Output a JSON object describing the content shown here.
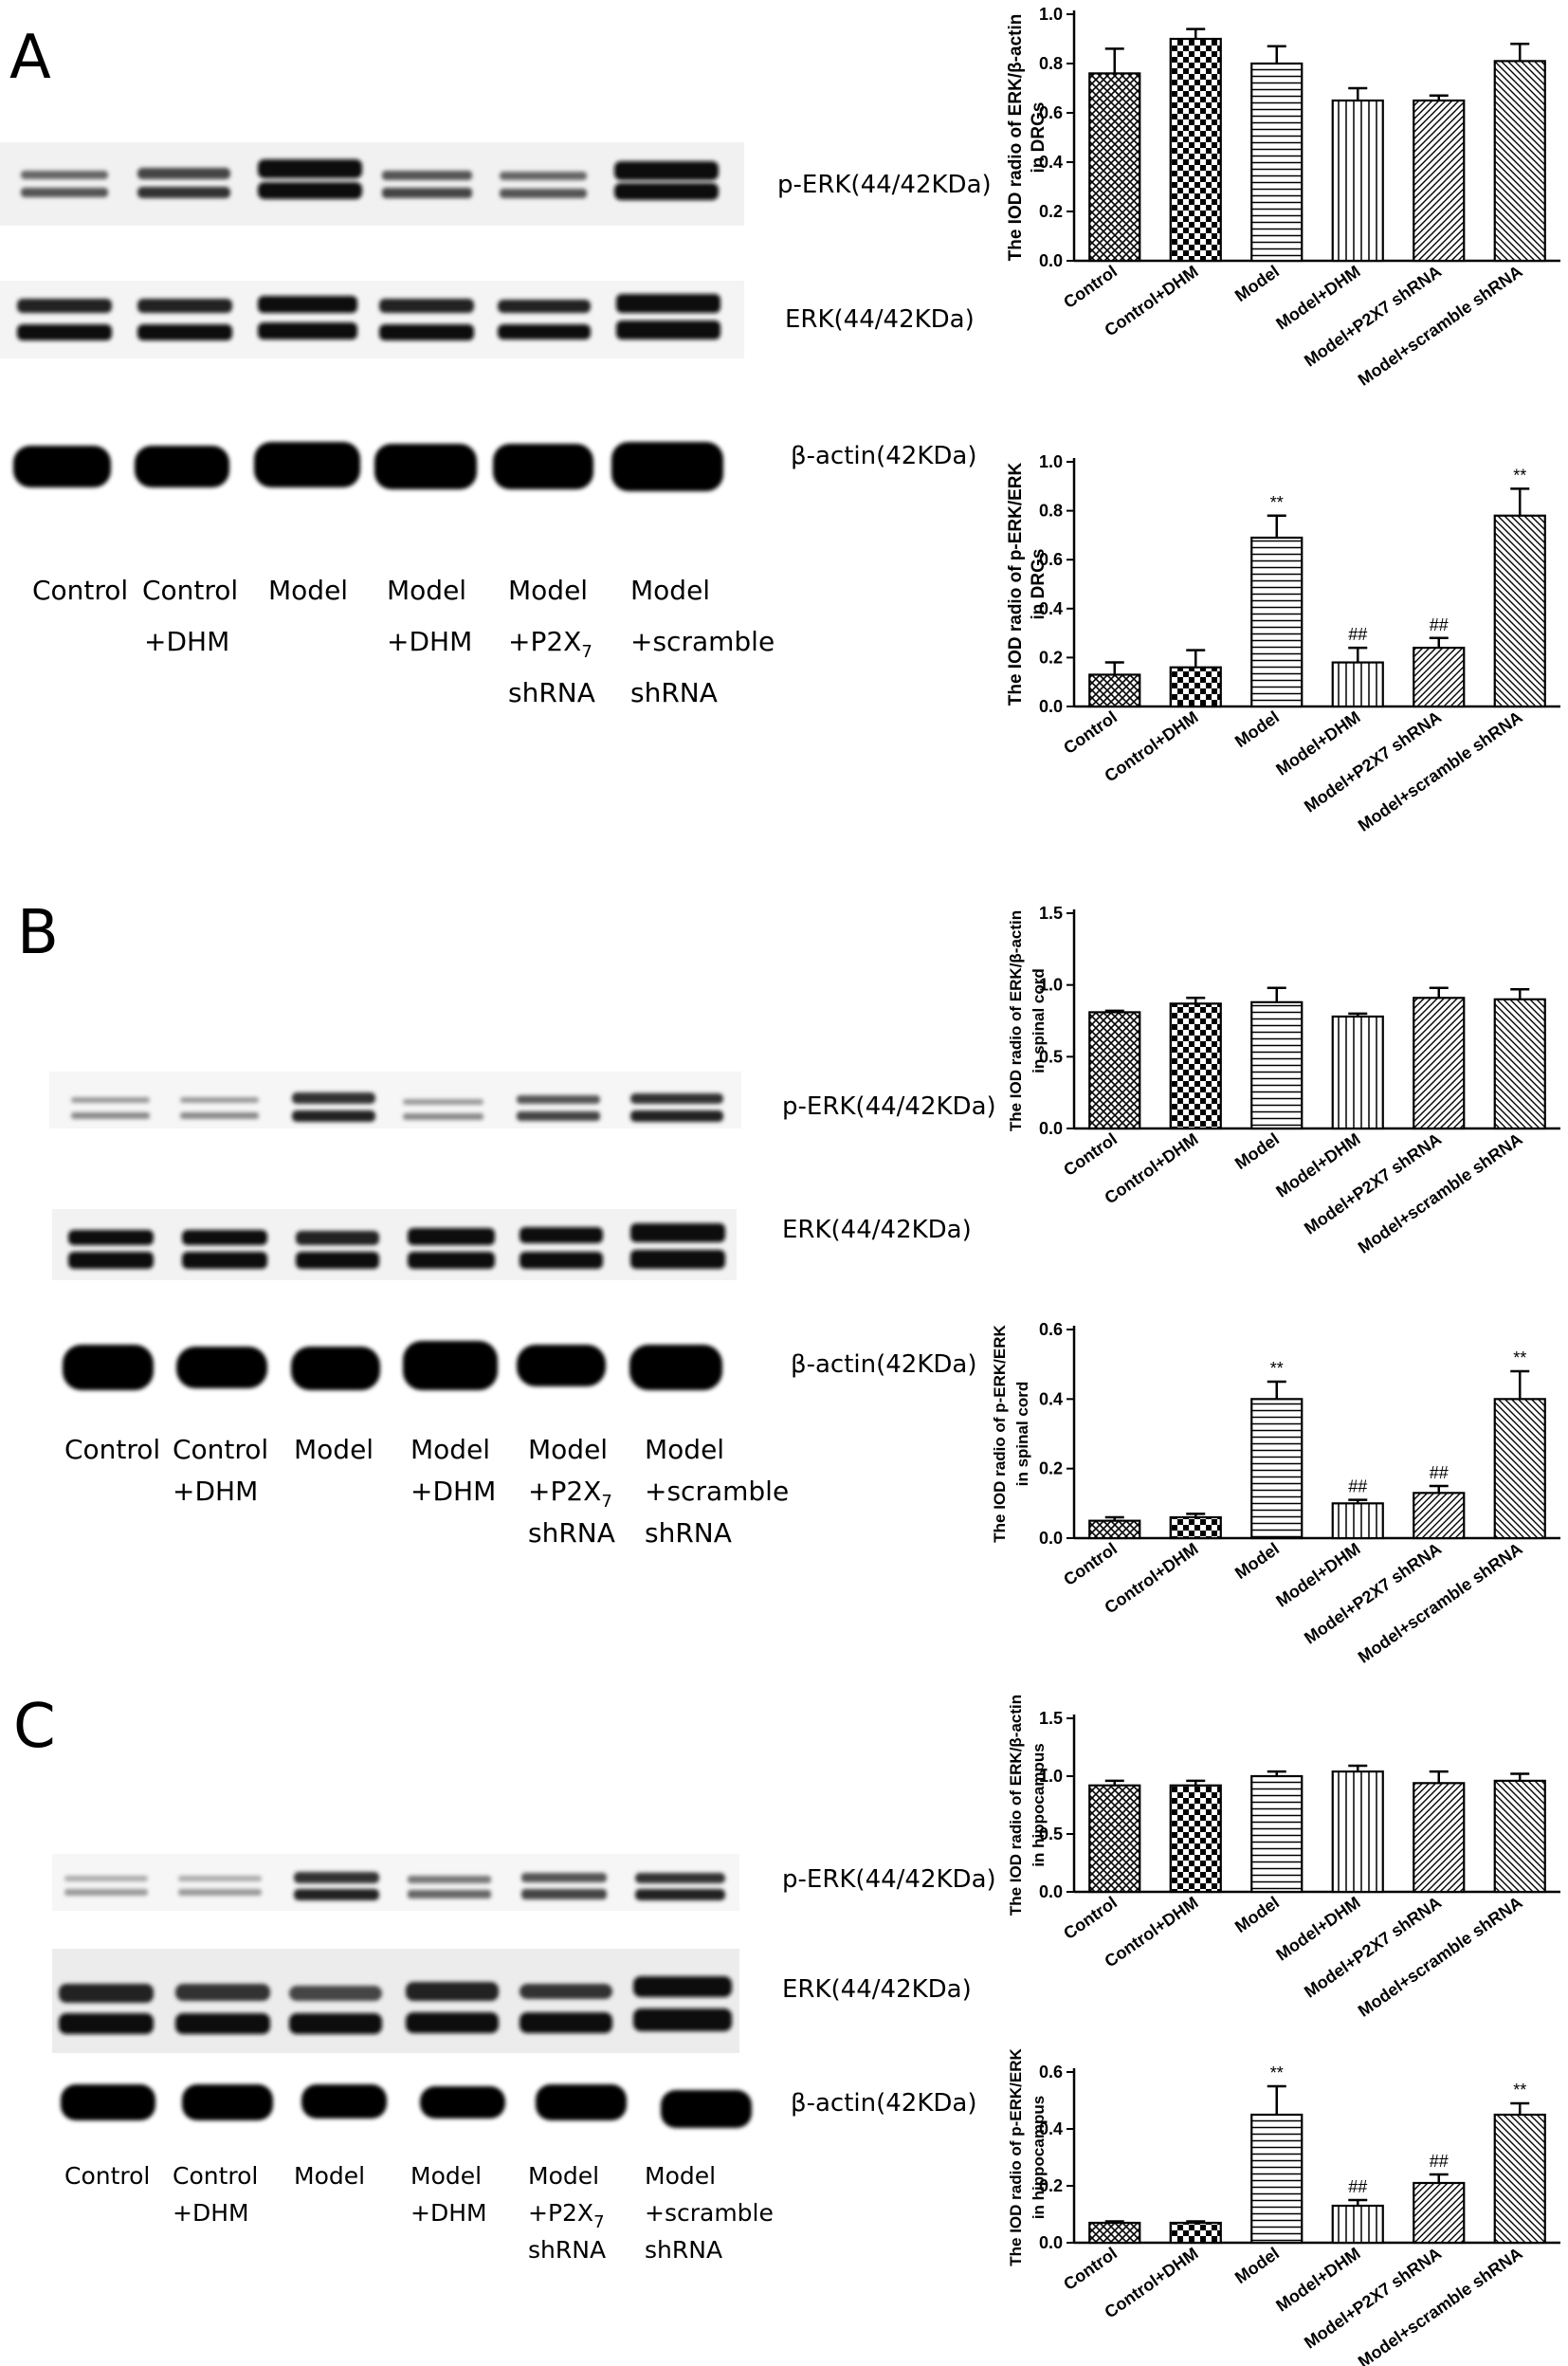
{
  "panels": [
    {
      "letter": "A",
      "blot_labels": [
        "p-ERK(44/42KDa)",
        "ERK(44/42KDa)",
        "β-actin(42KDa)"
      ],
      "lanes": [
        [
          "Control"
        ],
        [
          "Control",
          "+DHM"
        ],
        [
          "Model"
        ],
        [
          "Model",
          "+DHM"
        ],
        [
          "Model",
          "+P2X7",
          "shRNA"
        ],
        [
          "Model",
          "+scramble",
          "shRNA"
        ]
      ]
    },
    {
      "letter": "B",
      "blot_labels": [
        "p-ERK(44/42KDa)",
        "ERK(44/42KDa)",
        "β-actin(42KDa)"
      ],
      "lanes": [
        [
          "Control"
        ],
        [
          "Control",
          "+DHM"
        ],
        [
          "Model"
        ],
        [
          "Model",
          "+DHM"
        ],
        [
          "Model",
          "+P2X7",
          "shRNA"
        ],
        [
          "Model",
          "+scramble",
          "shRNA"
        ]
      ]
    },
    {
      "letter": "C",
      "blot_labels": [
        "p-ERK(44/42KDa)",
        "ERK(44/42KDa)",
        "β-actin(42KDa)"
      ],
      "lanes": [
        [
          "Control",
          ""
        ],
        [
          "Control",
          "+DHM"
        ],
        [
          "Model"
        ],
        [
          "Model",
          "+DHM"
        ],
        [
          "Model",
          "+P2X7",
          "shRNA"
        ],
        [
          "Model",
          "+scramble",
          "shRNA"
        ]
      ]
    }
  ],
  "chart_data": [
    {
      "type": "bar",
      "ylabel": [
        "The IOD radio of ERK/β-actin",
        "in DRGs"
      ],
      "categories": [
        "Control",
        "Control+DHM",
        "Model",
        "Model+DHM",
        "Model+P2X7 shRNA",
        "Model+scramble shRNA"
      ],
      "values": [
        0.76,
        0.9,
        0.8,
        0.65,
        0.65,
        0.81
      ],
      "errors": [
        0.1,
        0.04,
        0.07,
        0.05,
        0.02,
        0.07
      ],
      "annotations": [
        "",
        "",
        "",
        "",
        "",
        ""
      ],
      "ylim": [
        0,
        1.0
      ],
      "yticks": [
        "0.0",
        "0.2",
        "0.4",
        "0.6",
        "0.8",
        "1.0"
      ]
    },
    {
      "type": "bar",
      "ylabel": [
        "The IOD radio of p-ERK/ERK",
        "in DRGs"
      ],
      "categories": [
        "Control",
        "Control+DHM",
        "Model",
        "Model+DHM",
        "Model+P2X7 shRNA",
        "Model+scramble shRNA"
      ],
      "values": [
        0.13,
        0.16,
        0.69,
        0.18,
        0.24,
        0.78
      ],
      "errors": [
        0.05,
        0.07,
        0.09,
        0.06,
        0.04,
        0.11
      ],
      "annotations": [
        "",
        "",
        "**",
        "##",
        "##",
        "**"
      ],
      "ylim": [
        0,
        1.0
      ],
      "yticks": [
        "0.0",
        "0.2",
        "0.4",
        "0.6",
        "0.8",
        "1.0"
      ]
    },
    {
      "type": "bar",
      "ylabel": [
        "The IOD radio of ERK/β-actin",
        "in spinal cord"
      ],
      "categories": [
        "Control",
        "Control+DHM",
        "Model",
        "Model+DHM",
        "Model+P2X7 shRNA",
        "Model+scramble shRNA"
      ],
      "values": [
        0.81,
        0.87,
        0.88,
        0.78,
        0.91,
        0.9
      ],
      "errors": [
        0.01,
        0.04,
        0.1,
        0.02,
        0.07,
        0.07
      ],
      "annotations": [
        "",
        "",
        "",
        "",
        "",
        ""
      ],
      "ylim": [
        0,
        1.5
      ],
      "yticks": [
        "0.0",
        "0.5",
        "1.0",
        "1.5"
      ]
    },
    {
      "type": "bar",
      "ylabel": [
        "The IOD radio of p-ERK/ERK",
        "in spinal cord"
      ],
      "categories": [
        "Control",
        "Control+DHM",
        "Model",
        "Model+DHM",
        "Model+P2X7 shRNA",
        "Model+scramble shRNA"
      ],
      "values": [
        0.05,
        0.06,
        0.4,
        0.1,
        0.13,
        0.4
      ],
      "errors": [
        0.01,
        0.01,
        0.05,
        0.01,
        0.02,
        0.08
      ],
      "annotations": [
        "",
        "",
        "**",
        "##",
        "##",
        "**"
      ],
      "ylim": [
        0,
        0.6
      ],
      "yticks": [
        "0.0",
        "0.2",
        "0.4",
        "0.6"
      ]
    },
    {
      "type": "bar",
      "ylabel": [
        "The IOD radio of ERK/β-actin",
        "in hippocampus"
      ],
      "categories": [
        "Control",
        "Control+DHM",
        "Model",
        "Model+DHM",
        "Model+P2X7 shRNA",
        "Model+scramble shRNA"
      ],
      "values": [
        0.92,
        0.92,
        1.0,
        1.04,
        0.94,
        0.96
      ],
      "errors": [
        0.04,
        0.04,
        0.04,
        0.05,
        0.1,
        0.06
      ],
      "annotations": [
        "",
        "",
        "",
        "",
        "",
        ""
      ],
      "ylim": [
        0,
        1.5
      ],
      "yticks": [
        "0.0",
        "0.5",
        "1.0",
        "1.5"
      ]
    },
    {
      "type": "bar",
      "ylabel": [
        "The IOD radio of p-ERK/ERK",
        "in hippocampus"
      ],
      "categories": [
        "Control",
        "Control+DHM",
        "Model",
        "Model+DHM",
        "Model+P2X7 shRNA",
        "Model+scramble shRNA"
      ],
      "values": [
        0.07,
        0.07,
        0.45,
        0.13,
        0.21,
        0.45
      ],
      "errors": [
        0.005,
        0.005,
        0.1,
        0.02,
        0.03,
        0.04
      ],
      "annotations": [
        "",
        "",
        "**",
        "##",
        "##",
        "**"
      ],
      "ylim": [
        0,
        0.6
      ],
      "yticks": [
        "0.0",
        "0.2",
        "0.4",
        "0.6"
      ]
    }
  ]
}
